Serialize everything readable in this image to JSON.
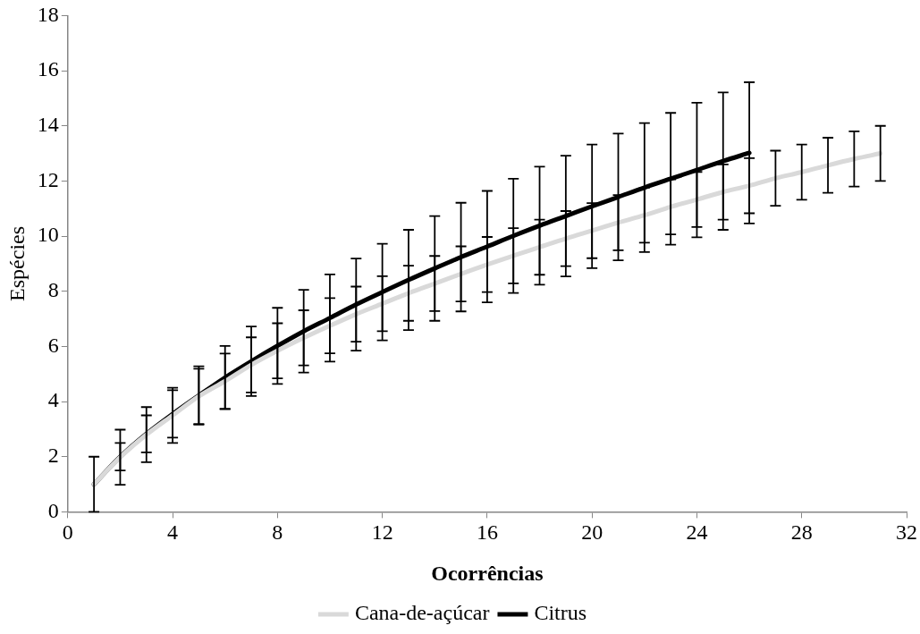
{
  "chart_data": {
    "type": "line",
    "xlabel": "Ocorrências",
    "ylabel": "Espécies",
    "xlim": [
      0,
      32
    ],
    "xticks": [
      0,
      4,
      8,
      12,
      16,
      20,
      24,
      28,
      32
    ],
    "ylim": [
      0,
      18
    ],
    "yticks": [
      0,
      2,
      4,
      6,
      8,
      10,
      12,
      14,
      16,
      18
    ],
    "grid": false,
    "legend": "bottom",
    "marker": "none",
    "line_style": "solid",
    "series": [
      {
        "name": "Cana-de-açúcar",
        "color": "#d9d9d9",
        "x": [
          1,
          2,
          3,
          4,
          5,
          6,
          7,
          8,
          9,
          10,
          11,
          12,
          13,
          14,
          15,
          16,
          17,
          18,
          19,
          20,
          21,
          22,
          23,
          24,
          25,
          26,
          27,
          28,
          29,
          30,
          31
        ],
        "values": [
          1,
          1.98,
          2.8,
          3.5,
          4.19,
          4.74,
          5.33,
          5.84,
          6.31,
          6.75,
          7.17,
          7.55,
          7.93,
          8.28,
          8.63,
          8.97,
          9.29,
          9.6,
          9.91,
          10.2,
          10.49,
          10.76,
          11.06,
          11.33,
          11.6,
          11.83,
          12.1,
          12.32,
          12.57,
          12.8,
          13.0
        ],
        "errors": [
          1,
          1,
          1,
          1,
          1,
          1,
          1,
          1,
          1,
          1,
          1,
          1,
          1,
          1,
          1,
          1,
          1,
          1,
          1,
          1,
          1,
          1,
          1,
          1,
          1,
          1,
          1,
          1,
          1,
          1,
          1
        ]
      },
      {
        "name": "Citrus",
        "color": "#000000",
        "x": [
          1,
          2,
          3,
          4,
          5,
          6,
          7,
          8,
          9,
          10,
          11,
          12,
          13,
          14,
          15,
          16,
          17,
          18,
          19,
          20,
          21,
          22,
          23,
          24,
          25,
          26
        ],
        "values": [
          1,
          2.0,
          2.83,
          3.55,
          4.22,
          4.87,
          5.46,
          6.02,
          6.55,
          7.03,
          7.52,
          7.97,
          8.41,
          8.83,
          9.24,
          9.62,
          10.01,
          10.38,
          10.73,
          11.08,
          11.42,
          11.76,
          12.08,
          12.4,
          12.72,
          13.02
        ],
        "errors": [
          null,
          0.5,
          0.67,
          0.86,
          1.06,
          1.15,
          1.26,
          1.38,
          1.5,
          1.58,
          1.67,
          1.75,
          1.82,
          1.9,
          1.97,
          2.02,
          2.07,
          2.14,
          2.19,
          2.24,
          2.3,
          2.34,
          2.39,
          2.44,
          2.49,
          2.56
        ]
      }
    ]
  }
}
